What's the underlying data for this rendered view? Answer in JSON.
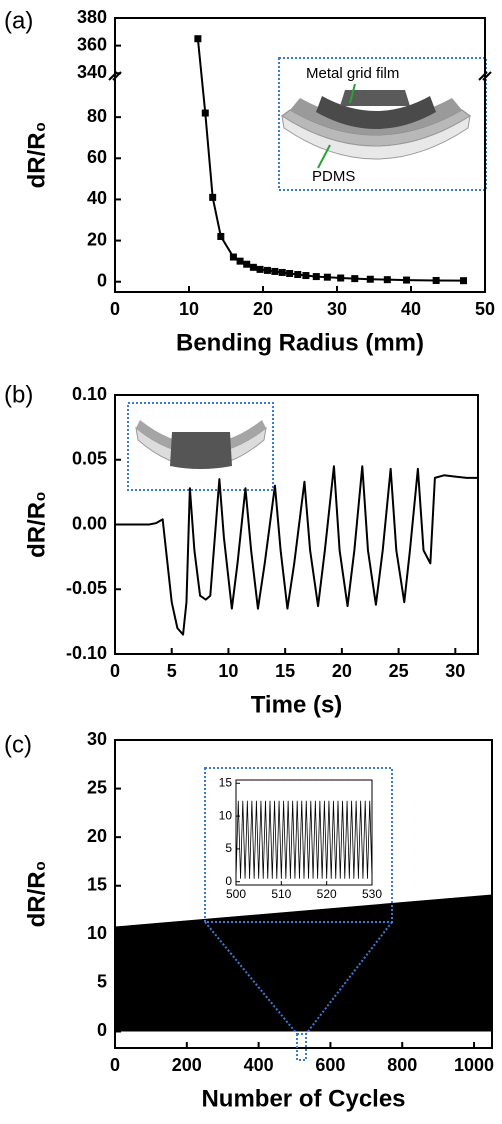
{
  "chart_data": [
    {
      "type": "line",
      "panel_label": "(a)",
      "xlabel": "Bending Radius (mm)",
      "ylabel": "dR/R₀",
      "x": [
        11.2,
        12.2,
        13.2,
        14.3,
        16.0,
        16.9,
        17.8,
        18.7,
        19.6,
        20.6,
        21.6,
        22.6,
        23.6,
        24.7,
        25.8,
        27.2,
        28.7,
        30.5,
        32.4,
        34.5,
        36.8,
        39.4,
        43.4,
        47.1
      ],
      "values": [
        365,
        82,
        41,
        22,
        12,
        10,
        8.5,
        7,
        6,
        5.5,
        5,
        4.5,
        4,
        3.5,
        3,
        2.5,
        2.2,
        1.8,
        1.5,
        1.2,
        1,
        0.8,
        0.6,
        0.5
      ],
      "color": "#000000",
      "marker": "square",
      "xlim": [
        0,
        50
      ],
      "xticks": [
        0,
        10,
        20,
        30,
        40,
        50
      ],
      "ylim": [
        -5,
        380
      ],
      "ybreak": [
        100,
        338
      ],
      "yticks": [
        0,
        20,
        40,
        60,
        80,
        340,
        360,
        380
      ],
      "annotations": [
        "Metal grid film",
        "PDMS"
      ]
    },
    {
      "type": "line",
      "panel_label": "(b)",
      "xlabel": "Time (s)",
      "ylabel": "dR/R₀",
      "x": [
        0,
        1,
        2,
        3,
        3.6,
        4.2,
        4.5,
        5,
        5.5,
        6,
        6.3,
        6.6,
        7.0,
        7.5,
        8,
        8.4,
        9.2,
        9.6,
        10.3,
        10.8,
        11.5,
        12.0,
        12.6,
        13.2,
        14.1,
        14.6,
        15.2,
        15.8,
        16.7,
        17.2,
        17.9,
        18.5,
        19.3,
        19.8,
        20.5,
        21.1,
        21.8,
        22.3,
        23.0,
        23.6,
        24.3,
        24.8,
        25.5,
        26.0,
        26.7,
        27.2,
        27.8,
        28.2,
        29,
        30,
        31,
        32
      ],
      "values": [
        0,
        0,
        0,
        0,
        0.001,
        0.004,
        -0.02,
        -0.06,
        -0.08,
        -0.085,
        -0.06,
        0.028,
        -0.02,
        -0.055,
        -0.058,
        -0.055,
        0.035,
        -0.01,
        -0.065,
        -0.03,
        0.028,
        -0.02,
        -0.065,
        -0.03,
        0.03,
        -0.02,
        -0.065,
        -0.03,
        0.033,
        -0.02,
        -0.063,
        -0.02,
        0.045,
        -0.02,
        -0.063,
        -0.02,
        0.045,
        -0.02,
        -0.062,
        -0.02,
        0.043,
        -0.02,
        -0.06,
        -0.02,
        0.043,
        -0.02,
        -0.03,
        0.036,
        0.038,
        0.037,
        0.036,
        0.036
      ],
      "color": "#000000",
      "xlim": [
        0,
        32
      ],
      "xticks": [
        0,
        5,
        10,
        15,
        20,
        25,
        30
      ],
      "ylim": [
        -0.1,
        0.1
      ],
      "yticks": [
        {
          "value": -0.1,
          "label": "-0.10"
        },
        -0.05,
        {
          "value": 0,
          "label": "0.00"
        },
        0.05,
        {
          "value": 0.1,
          "label": "0.10"
        }
      ]
    },
    {
      "type": "band",
      "panel_label": "(c)",
      "xlabel": "Number of Cycles",
      "ylabel": "dR/R₀",
      "x": [
        0,
        1050
      ],
      "max_values": [
        10.8,
        14.1
      ],
      "min_values": [
        0,
        0
      ],
      "color": "#000000",
      "xlim": [
        0,
        1050
      ],
      "xticks": [
        0,
        200,
        400,
        600,
        800,
        1000
      ],
      "ylim": [
        -1.7,
        30
      ],
      "yticks": [
        0,
        5,
        10,
        15,
        20,
        25,
        30
      ],
      "inset": {
        "type": "line",
        "color": "#000000",
        "x": [
          500,
          500.5,
          501,
          501.5,
          502,
          502.5,
          503,
          503.5,
          504,
          504.5,
          505,
          505.5,
          506,
          506.5,
          507,
          507.5,
          508,
          508.5,
          509,
          509.5,
          510,
          510.5,
          511,
          511.5,
          512,
          512.5,
          513,
          513.5,
          514,
          514.5,
          515,
          515.5,
          516,
          516.5,
          517,
          517.5,
          518,
          518.5,
          519,
          519.5,
          520,
          520.5,
          521,
          521.5,
          522,
          522.5,
          523,
          523.5,
          524,
          524.5,
          525,
          525.5,
          526,
          526.5,
          527,
          527.5,
          528,
          528.5,
          529,
          529.5,
          530
        ],
        "values": [
          0.5,
          12.3,
          0.5,
          12.3,
          0.5,
          12.3,
          0.5,
          12.3,
          0.5,
          12.3,
          0.5,
          12.3,
          0.5,
          12.3,
          0.5,
          12.3,
          0.5,
          12.3,
          0.5,
          12.3,
          0.5,
          12.3,
          0.5,
          12.3,
          0.5,
          12.3,
          0.5,
          12.3,
          0.5,
          12.3,
          0.5,
          12.3,
          0.5,
          12.3,
          0.5,
          12.3,
          0.5,
          12.3,
          0.5,
          12.3,
          0.5,
          12.3,
          0.5,
          12.3,
          0.5,
          12.3,
          0.5,
          12.3,
          0.5,
          12.3,
          0.5,
          12.3,
          0.5,
          12.3,
          0.5,
          12.3,
          0.5,
          12.3,
          0.5,
          12.3,
          0.5
        ],
        "xlim": [
          500,
          530
        ],
        "xticks": [
          500,
          510,
          520,
          530
        ],
        "ylim": [
          -0.5,
          15.5
        ],
        "yticks": [
          0,
          5,
          10,
          15
        ]
      }
    }
  ]
}
